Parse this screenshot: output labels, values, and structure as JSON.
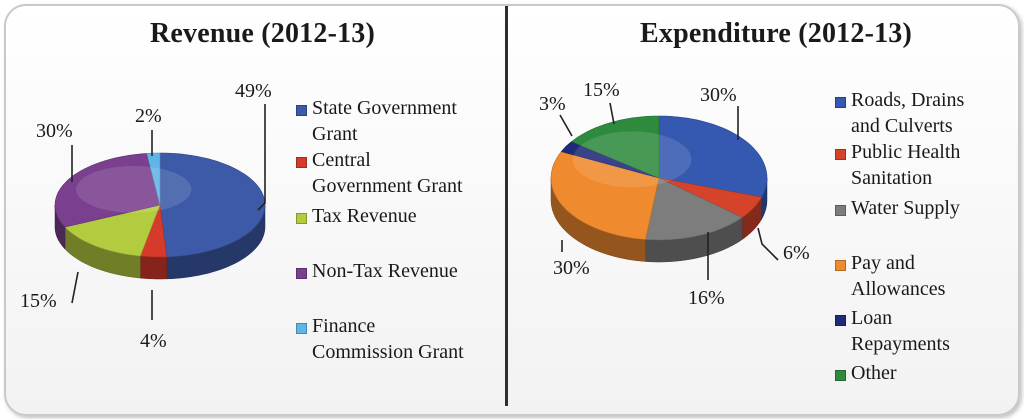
{
  "chart_data": [
    {
      "type": "pie",
      "title": "Revenue (2012-13)",
      "categories": [
        "State Government Grant",
        "Central Government Grant",
        "Tax Revenue",
        "Non-Tax Revenue",
        "Finance Commission Grant"
      ],
      "values": [
        49,
        4,
        15,
        30,
        2
      ],
      "value_labels": [
        "49%",
        "4%",
        "15%",
        "30%",
        "2%"
      ],
      "legend_lines": [
        [
          "State Government",
          "Grant"
        ],
        [
          "Central",
          "Government Grant"
        ],
        [
          "Tax Revenue"
        ],
        [
          "Non-Tax Revenue"
        ],
        [
          "Finance",
          "Commission Grant"
        ]
      ],
      "colors": [
        "#3d5aa8",
        "#d63a2a",
        "#b3cc3f",
        "#7a3f8e",
        "#5fb6e6"
      ],
      "legend_position": "right"
    },
    {
      "type": "pie",
      "title": "Expenditure (2012-13)",
      "categories": [
        "Roads, Drains and Culverts",
        "Public Health Sanitation",
        "Water Supply",
        "Pay and Allowances",
        "Loan Repayments",
        "Other"
      ],
      "values": [
        30,
        6,
        16,
        30,
        3,
        15
      ],
      "value_labels": [
        "30%",
        "6%",
        "16%",
        "30%",
        "3%",
        "15%"
      ],
      "legend_lines": [
        [
          "Roads, Drains",
          "and Culverts"
        ],
        [
          "Public Health",
          "Sanitation"
        ],
        [
          "Water Supply"
        ],
        [
          "Pay and",
          "Allowances"
        ],
        [
          "Loan",
          "Repayments"
        ],
        [
          "Other"
        ]
      ],
      "colors": [
        "#3558b0",
        "#d5432a",
        "#7d7d7d",
        "#ef8a2e",
        "#1f2a78",
        "#2e8b3e"
      ],
      "legend_position": "right"
    }
  ]
}
